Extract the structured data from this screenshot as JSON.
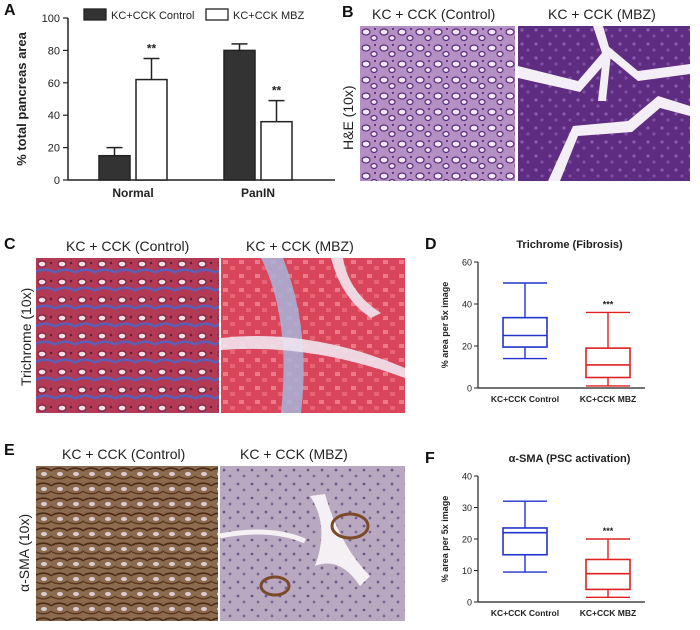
{
  "figure": {
    "panels": {
      "A": {
        "letter": "A",
        "legend": [
          "KC+CCK Control",
          "KC+CCK MBZ"
        ]
      },
      "B": {
        "letter": "B",
        "stain_label": "H&E (10x)",
        "captions": [
          "KC + CCK (Control)",
          "KC + CCK (MBZ)"
        ]
      },
      "C": {
        "letter": "C",
        "stain_label": "Trichrome (10x)",
        "captions": [
          "KC + CCK (Control)",
          "KC + CCK (MBZ)"
        ]
      },
      "D": {
        "letter": "D"
      },
      "E": {
        "letter": "E",
        "stain_label": "α-SMA (10x)",
        "captions": [
          "KC + CCK (Control)",
          "KC + CCK (MBZ)"
        ]
      },
      "F": {
        "letter": "F"
      }
    },
    "colors": {
      "control_bar": "#333333",
      "mbz_bar": "#ffffff",
      "box_control": "#2233cc",
      "box_mbz": "#dd2222",
      "he_stain": "#8a5aa6",
      "trichrome_stain": "#c83a50",
      "sma_stain": "#8a5a3a"
    }
  },
  "chart_data": [
    {
      "id": "A",
      "type": "bar",
      "title": "",
      "ylabel": "% total pancreas area",
      "xlabel": "",
      "categories": [
        "Normal",
        "PanIN"
      ],
      "series": [
        {
          "name": "KC+CCK Control",
          "values": [
            15,
            80
          ],
          "error": [
            5,
            4
          ]
        },
        {
          "name": "KC+CCK MBZ",
          "values": [
            62,
            36
          ],
          "error": [
            13,
            13
          ]
        }
      ],
      "annotations": [
        {
          "category": "Normal",
          "series": "KC+CCK MBZ",
          "text": "**"
        },
        {
          "category": "PanIN",
          "series": "KC+CCK MBZ",
          "text": "**"
        }
      ],
      "ylim": [
        0,
        100
      ],
      "yticks": [
        0,
        20,
        40,
        60,
        80,
        100
      ]
    },
    {
      "id": "D",
      "type": "box",
      "title": "Trichrome (Fibrosis)",
      "ylabel": "% area per 5x image",
      "categories": [
        "KC+CCK Control",
        "KC+CCK MBZ"
      ],
      "boxes": [
        {
          "name": "KC+CCK Control",
          "min": 14,
          "q1": 19.5,
          "median": 25,
          "q3": 33.5,
          "max": 50
        },
        {
          "name": "KC+CCK MBZ",
          "min": 1,
          "q1": 5,
          "median": 11,
          "q3": 19,
          "max": 36
        }
      ],
      "annotations": [
        {
          "category": "KC+CCK MBZ",
          "text": "***"
        }
      ],
      "ylim": [
        0,
        60
      ],
      "yticks": [
        0,
        20,
        40,
        60
      ]
    },
    {
      "id": "F",
      "type": "box",
      "title": "α-SMA (PSC activation)",
      "ylabel": "% area per 5x image",
      "categories": [
        "KC+CCK Control",
        "KC+CCK MBZ"
      ],
      "boxes": [
        {
          "name": "KC+CCK Control",
          "min": 9.5,
          "q1": 15,
          "median": 22,
          "q3": 23.5,
          "max": 32
        },
        {
          "name": "KC+CCK MBZ",
          "min": 1.5,
          "q1": 4,
          "median": 9,
          "q3": 13.5,
          "max": 20
        }
      ],
      "annotations": [
        {
          "category": "KC+CCK MBZ",
          "text": "***"
        }
      ],
      "ylim": [
        0,
        40
      ],
      "yticks": [
        0,
        10,
        20,
        30,
        40
      ]
    }
  ]
}
